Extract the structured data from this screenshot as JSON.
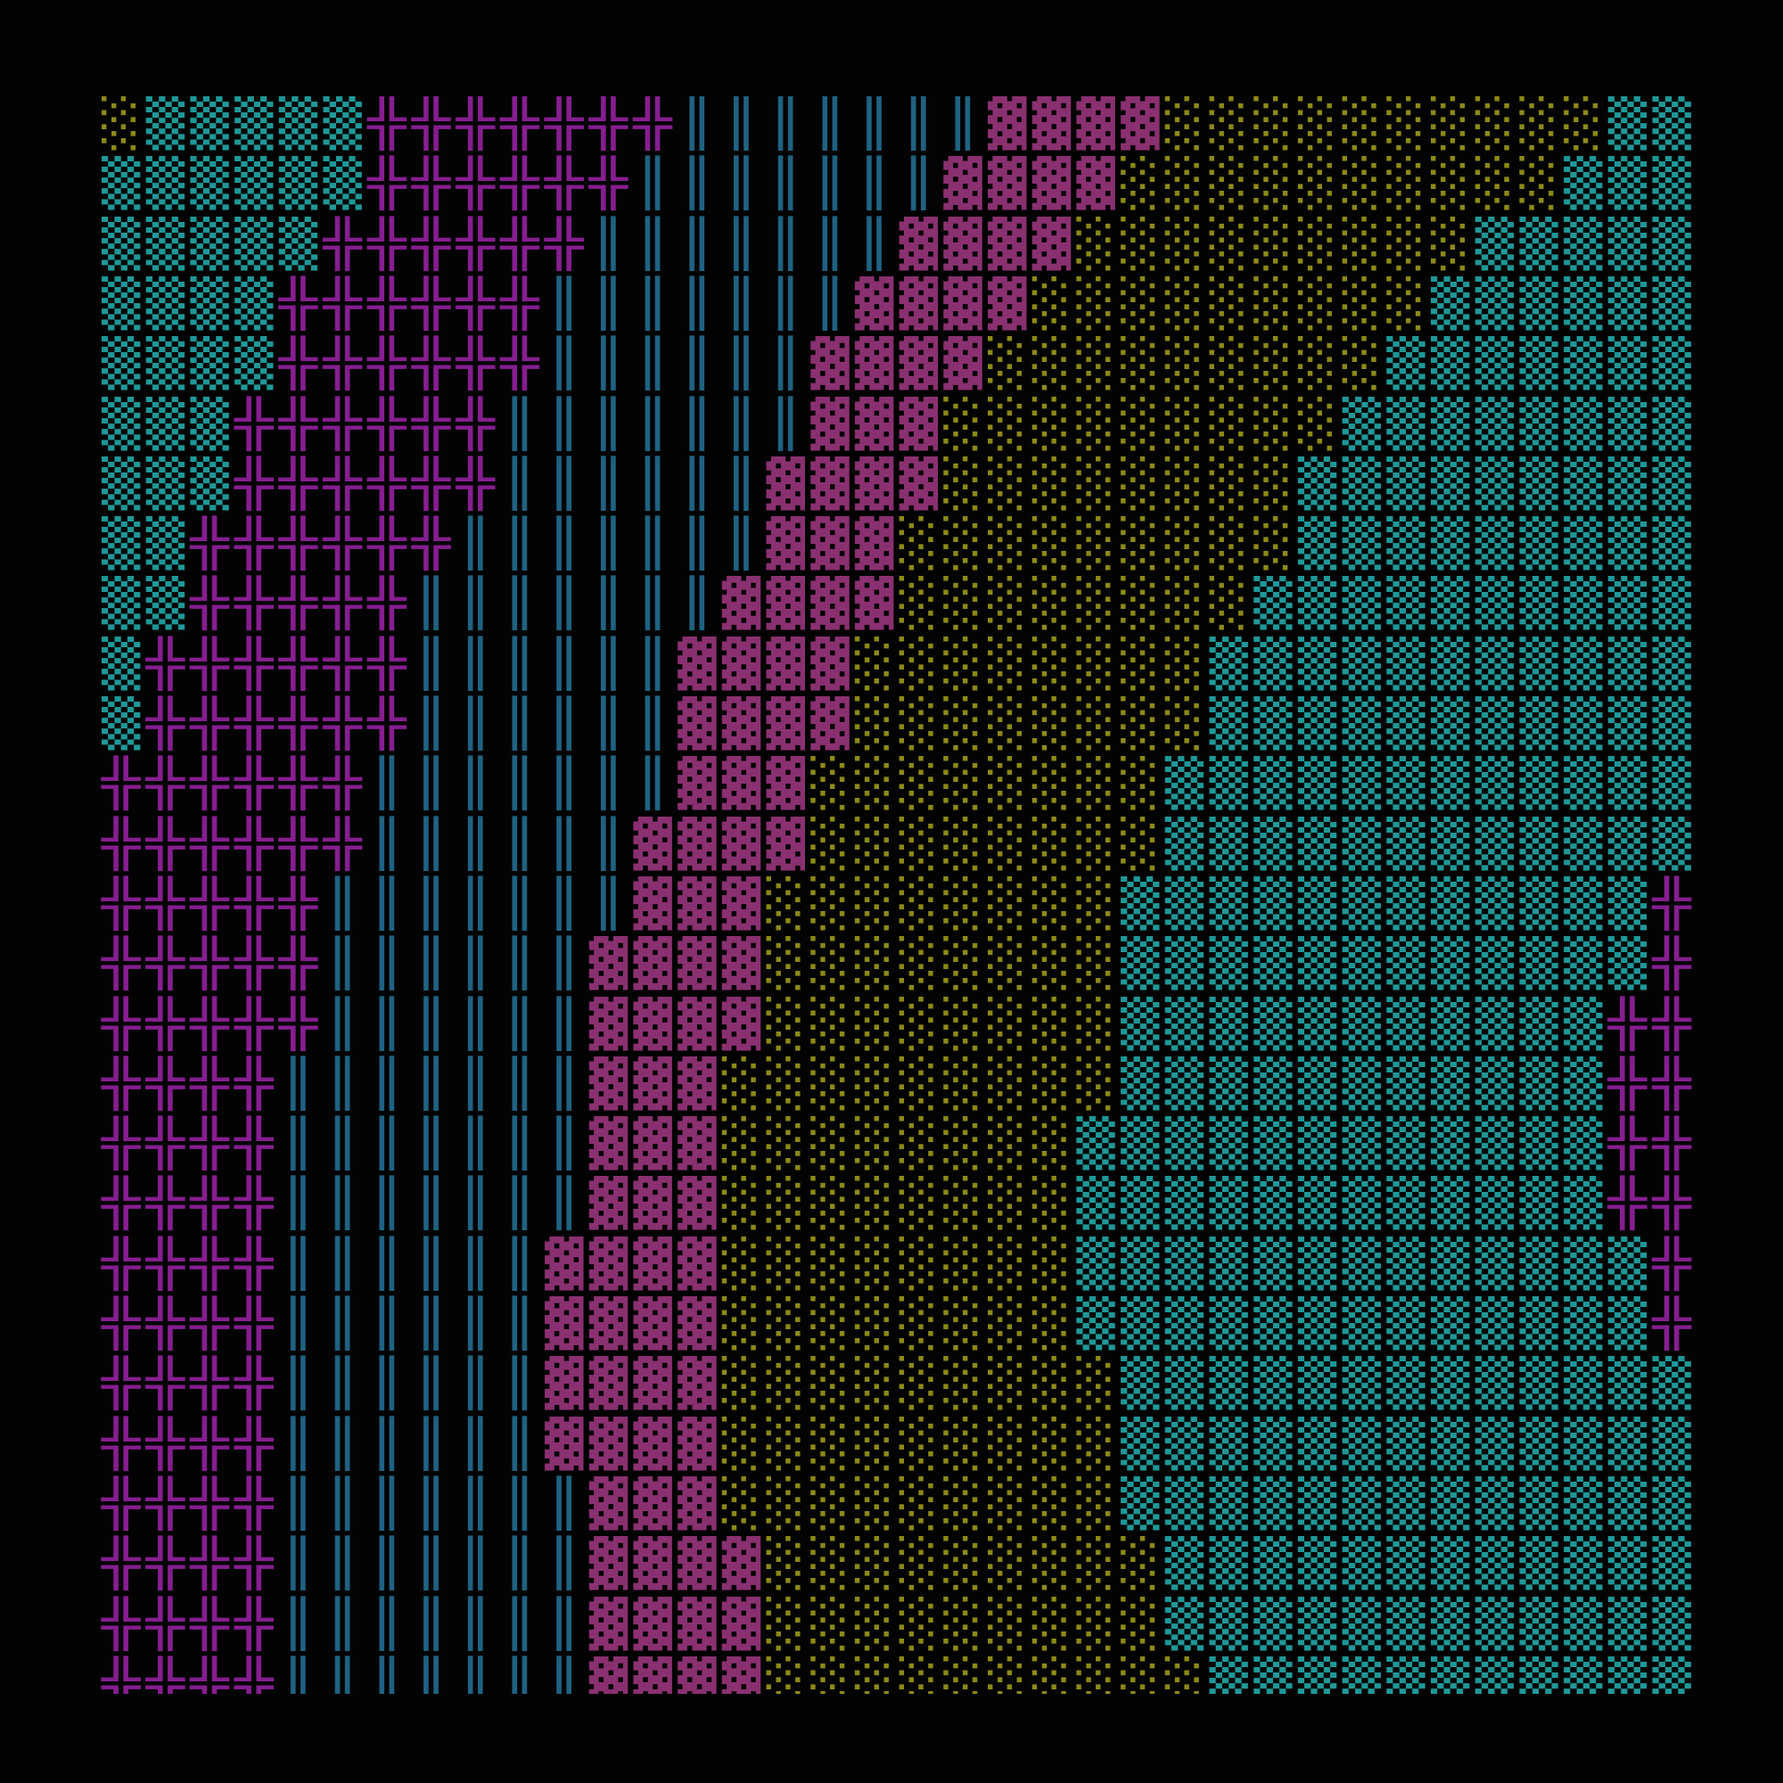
{
  "palette": {
    "░": "#8c8a14",
    "▒": "#1f9898",
    "▓": "#8a3070",
    "╬": "#861e90",
    "║": "#1f6282"
  },
  "rows": [
    "░▒▒▒▒▒╬╬╬╬╬╬╬║║║║║║║▓▓▓▓░░░░░░░░░░▒▒▒",
    "▒▒▒▒▒▒╬╬╬╬╬╬║║║║║║║▓▓▓▓░░░░░░░░░░▒▒▒▒",
    "▒▒▒▒▒╬╬╬╬╬╬║║║║║║║▓▓▓▓░░░░░░░░░▒▒▒▒▒▒",
    "▒▒▒▒╬╬╬╬╬╬║║║║║║║▓▓▓▓░░░░░░░░░▒▒▒▒▒▒▒",
    "▒▒▒▒╬╬╬╬╬╬║║║║║║▓▓▓▓░░░░░░░░░▒▒▒▒▒▒▒▒",
    "▒▒▒╬╬╬╬╬╬║║║║║║║▓▓▓░░░░░░░░░▒▒▒▒▒▒▒▒▒",
    "▒▒▒╬╬╬╬╬╬║║║║║║▓▓▓▓░░░░░░░░▒▒▒▒▒▒▒▒▒▒",
    "▒▒╬╬╬╬╬╬║║║║║║║▓▓▓░░░░░░░░░▒▒▒▒▒▒▒▒▒▒",
    "▒▒╬╬╬╬╬║║║║║║║▓▓▓▓░░░░░░░░▒▒▒▒▒▒▒▒▒▒▒",
    "▒╬╬╬╬╬╬║║║║║║▓▓▓▓░░░░░░░░▒▒▒▒▒▒▒▒▒▒▒▒",
    "▒╬╬╬╬╬╬║║║║║║▓▓▓▓░░░░░░░░▒▒▒▒▒▒▒▒▒▒▒▒",
    "╬╬╬╬╬╬║║║║║║║▓▓▓░░░░░░░░▒▒▒▒▒▒▒▒▒▒▒▒╬",
    "╬╬╬╬╬╬║║║║║║▓▓▓▓░░░░░░░░▒▒▒▒▒▒▒▒▒▒▒▒╬",
    "╬╬╬╬╬║║║║║║║▓▓▓░░░░░░░░▒▒▒▒▒▒▒▒▒▒▒▒╬╬",
    "╬╬╬╬╬║║║║║║▓▓▓▓░░░░░░░░▒▒▒▒▒▒▒▒▒▒▒▒╬╬",
    "╬╬╬╬╬║║║║║║▓▓▓▓░░░░░░░░▒▒▒▒▒▒▒▒▒▒▒╬╬╬",
    "╬╬╬╬║║║║║║║▓▓▓░░░░░░░░░▒▒▒▒▒▒▒▒▒▒▒╬╬╬",
    "╬╬╬╬║║║║║║║▓▓▓░░░░░░░░▒▒▒▒▒▒▒▒▒▒▒▒╬╬╬",
    "╬╬╬╬║║║║║║║▓▓▓░░░░░░░░▒▒▒▒▒▒▒▒▒▒▒▒╬╬╬",
    "╬╬╬╬║║║║║║▓▓▓▓░░░░░░░░▒▒▒▒▒▒▒▒▒▒▒▒▒╬╬",
    "╬╬╬╬║║║║║║▓▓▓▓░░░░░░░░▒▒▒▒▒▒▒▒▒▒▒▒▒╬╬",
    "╬╬╬╬║║║║║║▓▓▓▓░░░░░░░░░▒▒▒▒▒▒▒▒▒▒▒▒▒╬",
    "╬╬╬╬║║║║║║▓▓▓▓░░░░░░░░░▒▒▒▒▒▒▒▒▒▒▒▒▒▒",
    "╬╬╬╬║║║║║║║▓▓▓░░░░░░░░░▒▒▒▒▒▒▒▒▒▒▒▒▒▒",
    "╬╬╬╬║║║║║║║▓▓▓▓░░░░░░░░░▒▒▒▒▒▒▒▒▒▒▒▒▒",
    "╬╬╬╬║║║║║║║▓▓▓▓░░░░░░░░░▒▒▒▒▒▒▒▒▒▒▒▒▒",
    "╬╬╬╬║║║║║║║▓▓▓▓░░░░░░░░░░▒▒▒▒▒▒▒▒▒▒▒▒"
  ]
}
